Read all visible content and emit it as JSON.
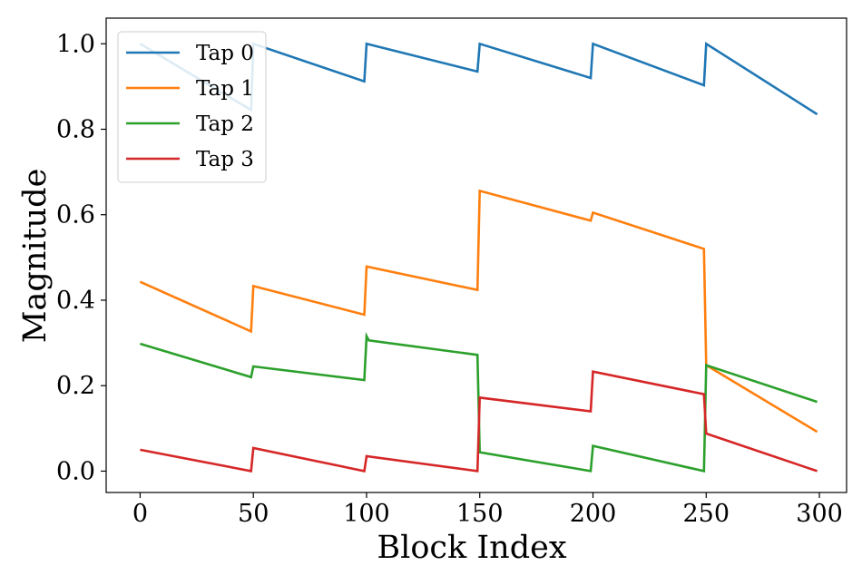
{
  "chart_data": {
    "type": "line",
    "title": "",
    "xlabel": "Block Index",
    "ylabel": "Magnitude",
    "xlim": [
      -15,
      312
    ],
    "ylim": [
      -0.05,
      1.06
    ],
    "xticks": [
      0,
      50,
      100,
      150,
      200,
      250,
      300
    ],
    "yticks": [
      0.0,
      0.2,
      0.4,
      0.6,
      0.8,
      1.0
    ],
    "xtick_labels": [
      "0",
      "50",
      "100",
      "150",
      "200",
      "250",
      "300"
    ],
    "ytick_labels": [
      "0.0",
      "0.2",
      "0.4",
      "0.6",
      "0.8",
      "1.0"
    ],
    "grid": false,
    "legend_position": "top-left",
    "series": [
      {
        "name": "Tap 0",
        "color": "#1f77b4",
        "x": [
          0,
          49,
          50,
          99,
          100,
          149,
          150,
          199,
          200,
          249,
          250,
          299
        ],
        "y": [
          1.0,
          0.845,
          1.0,
          0.912,
          1.0,
          0.935,
          1.0,
          0.92,
          1.0,
          0.903,
          1.0,
          0.835
        ]
      },
      {
        "name": "Tap 1",
        "color": "#ff7f0e",
        "x": [
          0,
          49,
          50,
          99,
          100,
          149,
          150,
          199,
          200,
          249,
          250,
          299
        ],
        "y": [
          0.443,
          0.327,
          0.433,
          0.366,
          0.479,
          0.424,
          0.656,
          0.586,
          0.605,
          0.52,
          0.248,
          0.092
        ]
      },
      {
        "name": "Tap 2",
        "color": "#2ca02c",
        "x": [
          0,
          49,
          50,
          99,
          100,
          101,
          149,
          150,
          199,
          200,
          249,
          250,
          299
        ],
        "y": [
          0.298,
          0.22,
          0.245,
          0.213,
          0.316,
          0.306,
          0.272,
          0.044,
          0.0,
          0.059,
          0.0,
          0.248,
          0.162
        ]
      },
      {
        "name": "Tap 3",
        "color": "#d62728",
        "x": [
          0,
          49,
          50,
          99,
          100,
          149,
          150,
          199,
          200,
          249,
          250,
          299
        ],
        "y": [
          0.05,
          0.0,
          0.054,
          0.0,
          0.035,
          0.0,
          0.172,
          0.14,
          0.233,
          0.18,
          0.088,
          0.0
        ]
      }
    ]
  }
}
